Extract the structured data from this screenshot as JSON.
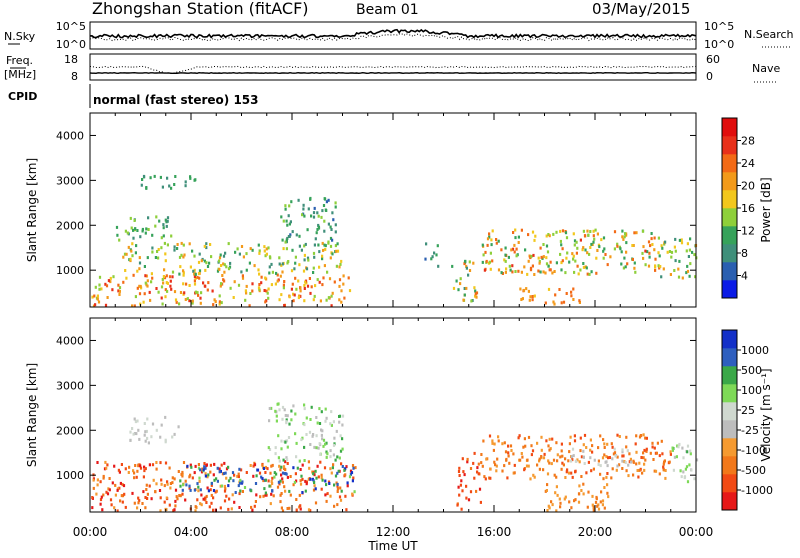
{
  "header": {
    "station_title": "Zhongshan Station (fitACF)",
    "beam": "Beam 01",
    "date": "03/May/2015"
  },
  "sky_panel": {
    "left_label": "N.Sky",
    "left_ticks": [
      "10^5",
      "10^0"
    ],
    "right_ticks": [
      "10^5",
      "10^0"
    ],
    "right_label": "N.Search"
  },
  "freq_panel": {
    "left_label_1": "Freq.",
    "left_label_2": "[MHz]",
    "left_ticks": [
      "18",
      "8"
    ],
    "right_ticks": [
      "60",
      "0"
    ],
    "right_label": "Nave"
  },
  "cpid": {
    "label": "CPID",
    "text": "normal (fast stereo) 153"
  },
  "colors": {
    "power": [
      "#0b1be6",
      "#2a5fb0",
      "#3f8f7a",
      "#36a25a",
      "#8ecf3a",
      "#f2c71d",
      "#f39a1a",
      "#f36a16",
      "#e8301a",
      "#e00d0d"
    ],
    "velocity": [
      "#e61818",
      "#f24a14",
      "#f2781a",
      "#f59a30",
      "#bdbdbd",
      "#cfd8cf",
      "#7ed957",
      "#3aa848",
      "#2e5fbf",
      "#1330c8"
    ]
  },
  "chart_data": [
    {
      "type": "heatmap",
      "name": "power",
      "x_ticks": [
        "00:00",
        "04:00",
        "08:00",
        "12:00",
        "16:00",
        "20:00",
        "00:00"
      ],
      "x_range_hours": [
        0,
        24
      ],
      "ylabel": "Slant Range [km]",
      "y_ticks": [
        1000,
        2000,
        3000,
        4000
      ],
      "ylim": [
        180,
        4500
      ],
      "colorbar_label": "Power [dB]",
      "colorbar_ticks": [
        4,
        8,
        12,
        16,
        20,
        24,
        28
      ],
      "colorbar_range": [
        0,
        32
      ],
      "regions": [
        {
          "t": [
            0.0,
            10.3
          ],
          "r": [
            200,
            900
          ],
          "v": [
            14,
            28
          ]
        },
        {
          "t": [
            1.2,
            10.0
          ],
          "r": [
            900,
            1600
          ],
          "v": [
            8,
            22
          ]
        },
        {
          "t": [
            1.0,
            3.2
          ],
          "r": [
            1600,
            2200
          ],
          "v": [
            8,
            16
          ]
        },
        {
          "t": [
            7.5,
            9.8
          ],
          "r": [
            1500,
            2600
          ],
          "v": [
            6,
            14
          ]
        },
        {
          "t": [
            2.0,
            4.2
          ],
          "r": [
            2800,
            3100
          ],
          "v": [
            8,
            12
          ]
        },
        {
          "t": [
            14.3,
            15.3
          ],
          "r": [
            200,
            1200
          ],
          "v": [
            6,
            24
          ]
        },
        {
          "t": [
            15.5,
            22.5
          ],
          "r": [
            900,
            1900
          ],
          "v": [
            10,
            26
          ]
        },
        {
          "t": [
            22.5,
            24.0
          ],
          "r": [
            800,
            1700
          ],
          "v": [
            8,
            22
          ]
        },
        {
          "t": [
            17.0,
            19.5
          ],
          "r": [
            200,
            600
          ],
          "v": [
            18,
            26
          ]
        },
        {
          "t": [
            13.2,
            13.8
          ],
          "r": [
            1000,
            1600
          ],
          "v": [
            6,
            12
          ]
        }
      ]
    },
    {
      "type": "heatmap",
      "name": "velocity",
      "x_ticks": [
        "00:00",
        "04:00",
        "08:00",
        "12:00",
        "16:00",
        "20:00",
        "00:00"
      ],
      "x_range_hours": [
        0,
        24
      ],
      "xlabel": "Time UT",
      "ylabel": "Slant Range [km]",
      "y_ticks": [
        1000,
        2000,
        3000,
        4000
      ],
      "ylim": [
        180,
        4500
      ],
      "colorbar_label": "Velocity [m s⁻¹]",
      "colorbar_ticks": [
        "1000",
        "500",
        "100",
        "25",
        "-25",
        "-100",
        "-500",
        "-1000"
      ],
      "regions": [
        {
          "t": [
            0.0,
            10.5
          ],
          "r": [
            200,
            1300
          ],
          "v": [
            0,
            3
          ]
        },
        {
          "t": [
            3.5,
            10.5
          ],
          "r": [
            600,
            1200
          ],
          "v": [
            6,
            9
          ]
        },
        {
          "t": [
            7.0,
            10.0
          ],
          "r": [
            1300,
            2600
          ],
          "v": [
            4,
            7
          ]
        },
        {
          "t": [
            1.5,
            3.5
          ],
          "r": [
            1700,
            2300
          ],
          "v": [
            4,
            5
          ]
        },
        {
          "t": [
            14.5,
            15.5
          ],
          "r": [
            200,
            1500
          ],
          "v": [
            0,
            2
          ]
        },
        {
          "t": [
            15.5,
            23.0
          ],
          "r": [
            900,
            1900
          ],
          "v": [
            1,
            3
          ]
        },
        {
          "t": [
            19.0,
            21.5
          ],
          "r": [
            1200,
            1600
          ],
          "v": [
            4,
            5
          ]
        },
        {
          "t": [
            23.0,
            24.0
          ],
          "r": [
            800,
            1700
          ],
          "v": [
            4,
            7
          ]
        },
        {
          "t": [
            18.0,
            20.5
          ],
          "r": [
            200,
            800
          ],
          "v": [
            2,
            3
          ]
        }
      ]
    }
  ]
}
